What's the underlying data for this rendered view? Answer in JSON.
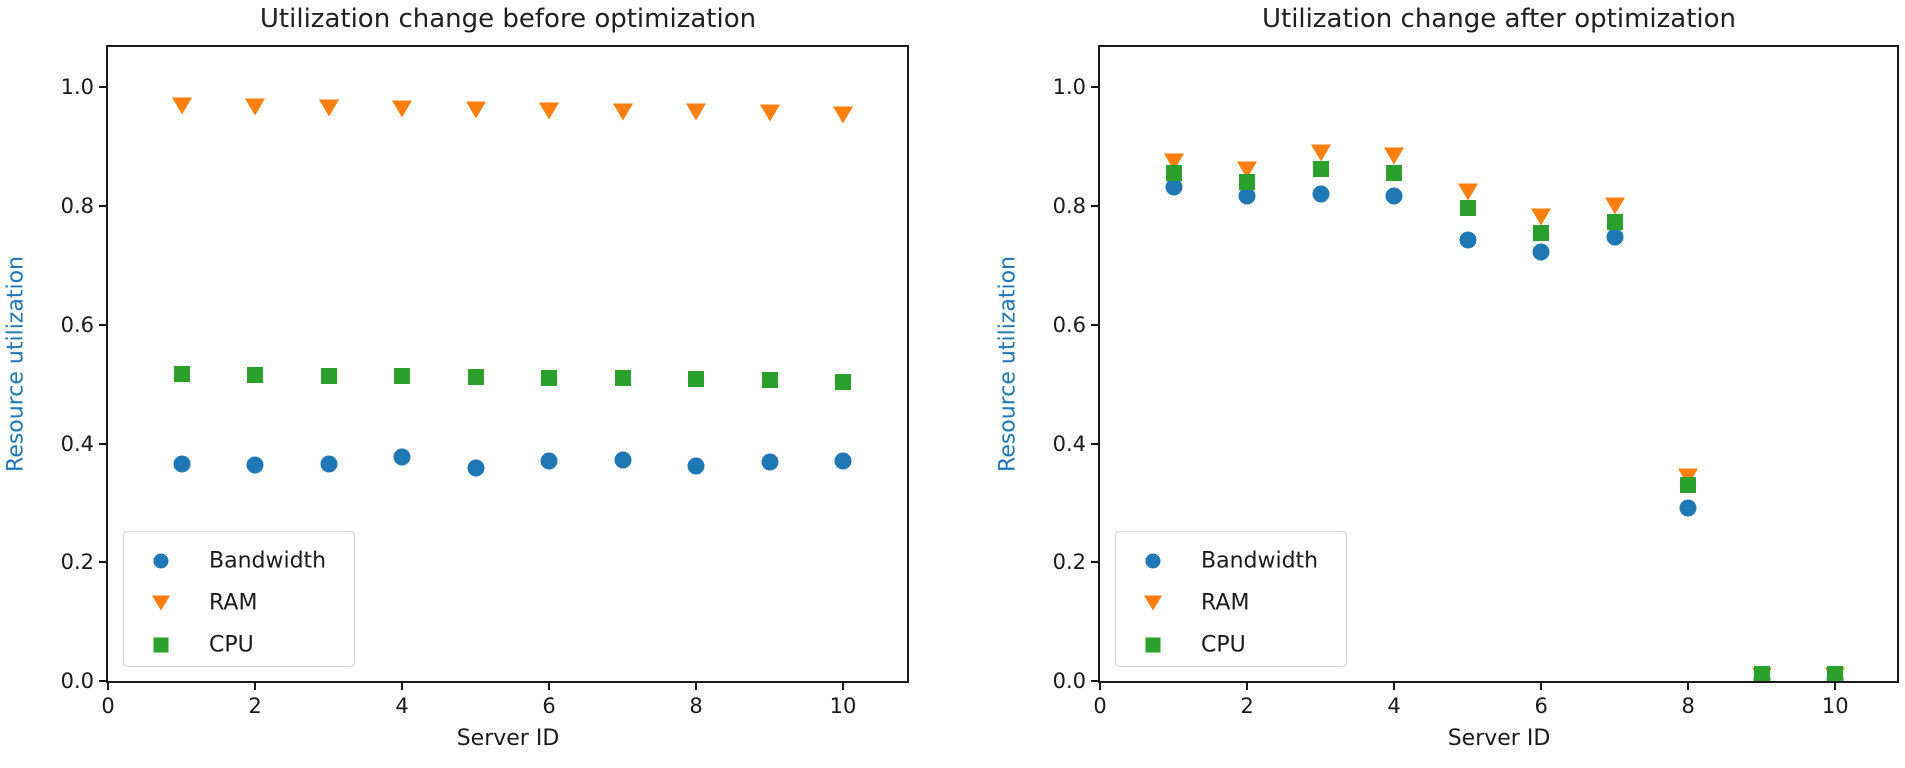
{
  "chart_data": [
    {
      "type": "scatter",
      "title": "Utilization change before optimization",
      "xlabel": "Server ID",
      "ylabel": "Resource utilization",
      "ylabel_color": "#1f77b4",
      "x": [
        1,
        2,
        3,
        4,
        5,
        6,
        7,
        8,
        9,
        10
      ],
      "series": [
        {
          "name": "Bandwidth",
          "marker": "circle",
          "color": "#1f77b4",
          "values": [
            0.366,
            0.364,
            0.365,
            0.377,
            0.359,
            0.371,
            0.373,
            0.362,
            0.369,
            0.371
          ]
        },
        {
          "name": "RAM",
          "marker": "triangle-down",
          "color": "#ff7f0e",
          "values": [
            0.968,
            0.967,
            0.965,
            0.964,
            0.962,
            0.961,
            0.959,
            0.958,
            0.956,
            0.954
          ]
        },
        {
          "name": "CPU",
          "marker": "square",
          "color": "#2ca02c",
          "values": [
            0.517,
            0.516,
            0.514,
            0.513,
            0.512,
            0.511,
            0.51,
            0.509,
            0.507,
            0.504
          ]
        }
      ],
      "xlim": [
        0,
        10.87
      ],
      "ylim": [
        0,
        1.068
      ],
      "xticks": [
        0,
        2,
        4,
        6,
        8,
        10
      ],
      "yticks": [
        0.0,
        0.2,
        0.4,
        0.6,
        0.8,
        1.0
      ],
      "xtick_labels": [
        "0",
        "2",
        "4",
        "6",
        "8",
        "10"
      ],
      "ytick_labels": [
        "0.0",
        "0.2",
        "0.4",
        "0.6",
        "0.8",
        "1.0"
      ],
      "grid": false,
      "legend_position": "lower left",
      "legend": [
        "Bandwidth",
        "RAM",
        "CPU"
      ]
    },
    {
      "type": "scatter",
      "title": "Utilization change after optimization",
      "xlabel": "Server ID",
      "ylabel": "Resource utilization",
      "ylabel_color": "#1f77b4",
      "x": [
        1,
        2,
        3,
        4,
        5,
        6,
        7,
        8,
        9,
        10
      ],
      "series": [
        {
          "name": "Bandwidth",
          "marker": "circle",
          "color": "#1f77b4",
          "values": [
            0.832,
            0.817,
            0.821,
            0.817,
            0.743,
            0.722,
            0.748,
            0.291,
            0.004,
            0.004
          ]
        },
        {
          "name": "RAM",
          "marker": "triangle-down",
          "color": "#ff7f0e",
          "values": [
            0.874,
            0.861,
            0.89,
            0.884,
            0.823,
            0.781,
            0.8,
            0.344,
            0.008,
            0.008
          ]
        },
        {
          "name": "CPU",
          "marker": "square",
          "color": "#2ca02c",
          "values": [
            0.855,
            0.841,
            0.863,
            0.856,
            0.796,
            0.754,
            0.773,
            0.33,
            0.012,
            0.012
          ]
        }
      ],
      "xlim": [
        0,
        10.84
      ],
      "ylim": [
        0,
        1.068
      ],
      "xticks": [
        0,
        2,
        4,
        6,
        8,
        10
      ],
      "yticks": [
        0.0,
        0.2,
        0.4,
        0.6,
        0.8,
        1.0
      ],
      "xtick_labels": [
        "0",
        "2",
        "4",
        "6",
        "8",
        "10"
      ],
      "ytick_labels": [
        "0.0",
        "0.2",
        "0.4",
        "0.6",
        "0.8",
        "1.0"
      ],
      "grid": false,
      "legend_position": "lower left",
      "legend": [
        "Bandwidth",
        "RAM",
        "CPU"
      ]
    }
  ],
  "marker_colors": {
    "blue": "#1f77b4",
    "orange": "#ff7f0e",
    "green": "#2ca02c"
  }
}
